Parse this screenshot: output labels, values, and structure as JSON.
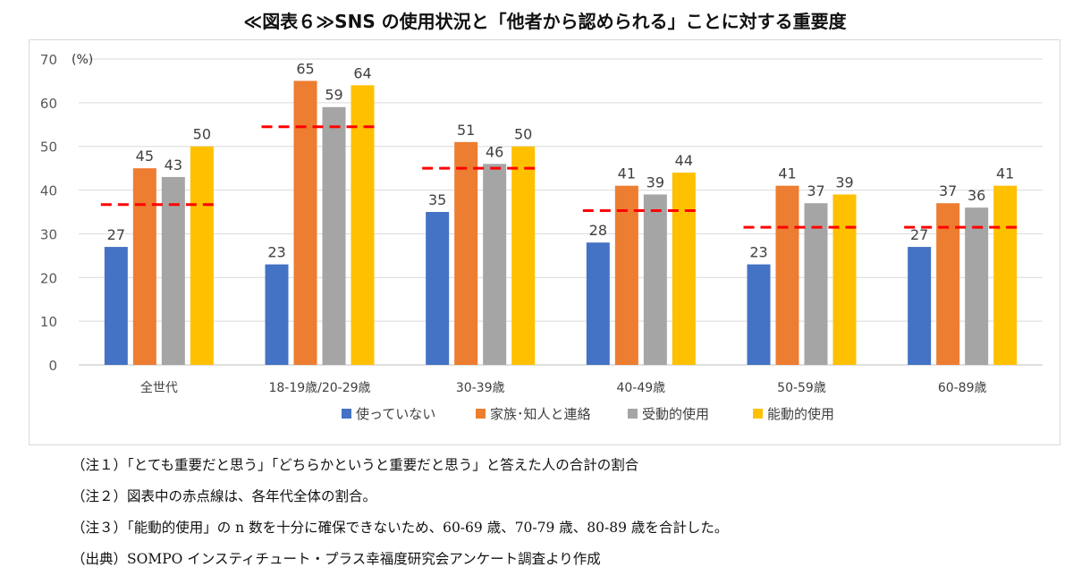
{
  "title": "≪図表６≫SNS の使用状況と「他者から認められる」ことに対する重要度",
  "chart_data": {
    "type": "bar",
    "unit_label": "(%)",
    "ylim": [
      0,
      70
    ],
    "yticks": [
      0,
      10,
      20,
      30,
      40,
      50,
      60,
      70
    ],
    "grid": true,
    "legend_position": "bottom",
    "categories": [
      "全世代",
      "18-19歳/20-29歳",
      "30-39歳",
      "40-49歳",
      "50-59歳",
      "60-89歳"
    ],
    "series": [
      {
        "name": "使っていない",
        "color": "#4472c4",
        "values": [
          27,
          23,
          35,
          28,
          23,
          27
        ]
      },
      {
        "name": "家族･知人と連絡",
        "color": "#ed7d31",
        "values": [
          45,
          65,
          51,
          41,
          41,
          37
        ]
      },
      {
        "name": "受動的使用",
        "color": "#a5a5a5",
        "values": [
          43,
          59,
          46,
          39,
          37,
          36
        ]
      },
      {
        "name": "能動的使用",
        "color": "#ffc000",
        "values": [
          50,
          64,
          50,
          44,
          39,
          41
        ]
      }
    ],
    "reference_line": {
      "color": "#ff0000",
      "values": [
        36.7,
        54.5,
        45,
        35.3,
        31.5,
        31.5
      ]
    }
  },
  "notes": [
    "（注１）「とても重要だと思う」「どちらかというと重要だと思う」と答えた人の合計の割合",
    "（注２）図表中の赤点線は、各年代全体の割合。",
    "（注３）「能動的使用」の n 数を十分に確保できないため、60-69 歳、70-79 歳、80-89 歳を合計した。",
    "（出典）SOMPO インスティチュート・プラス幸福度研究会アンケート調査より作成"
  ]
}
